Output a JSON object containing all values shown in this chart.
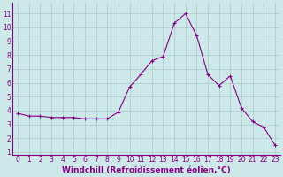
{
  "x": [
    0,
    1,
    2,
    3,
    4,
    5,
    6,
    7,
    8,
    9,
    10,
    11,
    12,
    13,
    14,
    15,
    16,
    17,
    18,
    19,
    20,
    21,
    22,
    23
  ],
  "y": [
    3.8,
    3.6,
    3.6,
    3.5,
    3.5,
    3.5,
    3.4,
    3.4,
    3.4,
    3.9,
    5.7,
    6.6,
    7.6,
    7.9,
    10.3,
    11.0,
    9.4,
    6.6,
    5.8,
    6.5,
    4.2,
    3.2,
    2.8,
    1.5
  ],
  "line_color": "#880088",
  "marker": "+",
  "marker_size": 3,
  "bg_color": "#cce8e8",
  "grid_color": "#aacccc",
  "xlabel": "Windchill (Refroidissement éolien,°C)",
  "ylim_min": 0.8,
  "ylim_max": 11.8,
  "xlim_min": -0.5,
  "xlim_max": 23.5,
  "yticks": [
    1,
    2,
    3,
    4,
    5,
    6,
    7,
    8,
    9,
    10,
    11
  ],
  "xticks": [
    0,
    1,
    2,
    3,
    4,
    5,
    6,
    7,
    8,
    9,
    10,
    11,
    12,
    13,
    14,
    15,
    16,
    17,
    18,
    19,
    20,
    21,
    22,
    23
  ],
  "tick_label_fontsize": 5.5,
  "xlabel_fontsize": 6.5,
  "line_width": 0.8,
  "marker_linewidth": 0.8
}
